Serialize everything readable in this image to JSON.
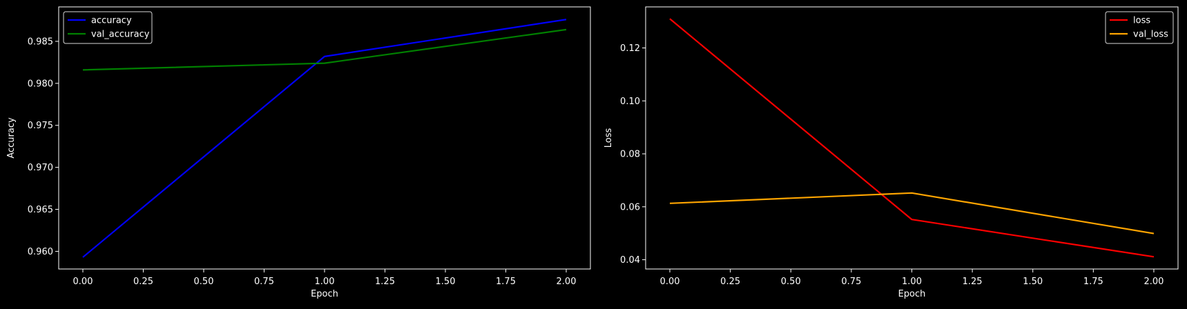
{
  "chart_data": [
    {
      "type": "line",
      "title": "",
      "xlabel": "Epoch",
      "ylabel": "Accuracy",
      "xlim": [
        -0.1,
        2.1
      ],
      "ylim": [
        0.9579,
        0.9891
      ],
      "xticks": [
        0.0,
        0.25,
        0.5,
        0.75,
        1.0,
        1.25,
        1.5,
        1.75,
        2.0
      ],
      "xtick_labels": [
        "0.00",
        "0.25",
        "0.50",
        "0.75",
        "1.00",
        "1.25",
        "1.50",
        "1.75",
        "2.00"
      ],
      "yticks": [
        0.96,
        0.965,
        0.97,
        0.975,
        0.98,
        0.985
      ],
      "ytick_labels": [
        "0.960",
        "0.965",
        "0.970",
        "0.975",
        "0.980",
        "0.985"
      ],
      "legend_position": "upper-left",
      "grid": false,
      "x": [
        0,
        1,
        2
      ],
      "series": [
        {
          "name": "accuracy",
          "color": "#0000ff",
          "values": [
            0.9593,
            0.9832,
            0.9876
          ]
        },
        {
          "name": "val_accuracy",
          "color": "#008000",
          "values": [
            0.9816,
            0.9824,
            0.9864
          ]
        }
      ]
    },
    {
      "type": "line",
      "title": "",
      "xlabel": "Epoch",
      "ylabel": "Loss",
      "xlim": [
        -0.1,
        2.1
      ],
      "ylim": [
        0.0365,
        0.1355
      ],
      "xticks": [
        0.0,
        0.25,
        0.5,
        0.75,
        1.0,
        1.25,
        1.5,
        1.75,
        2.0
      ],
      "xtick_labels": [
        "0.00",
        "0.25",
        "0.50",
        "0.75",
        "1.00",
        "1.25",
        "1.50",
        "1.75",
        "2.00"
      ],
      "yticks": [
        0.04,
        0.06,
        0.08,
        0.1,
        0.12
      ],
      "ytick_labels": [
        "0.04",
        "0.06",
        "0.08",
        "0.10",
        "0.12"
      ],
      "legend_position": "upper-right",
      "grid": false,
      "x": [
        0,
        1,
        2
      ],
      "series": [
        {
          "name": "loss",
          "color": "#ff0000",
          "values": [
            0.131,
            0.0552,
            0.0411
          ]
        },
        {
          "name": "val_loss",
          "color": "#ffa500",
          "values": [
            0.0613,
            0.0652,
            0.0499
          ]
        }
      ]
    }
  ]
}
